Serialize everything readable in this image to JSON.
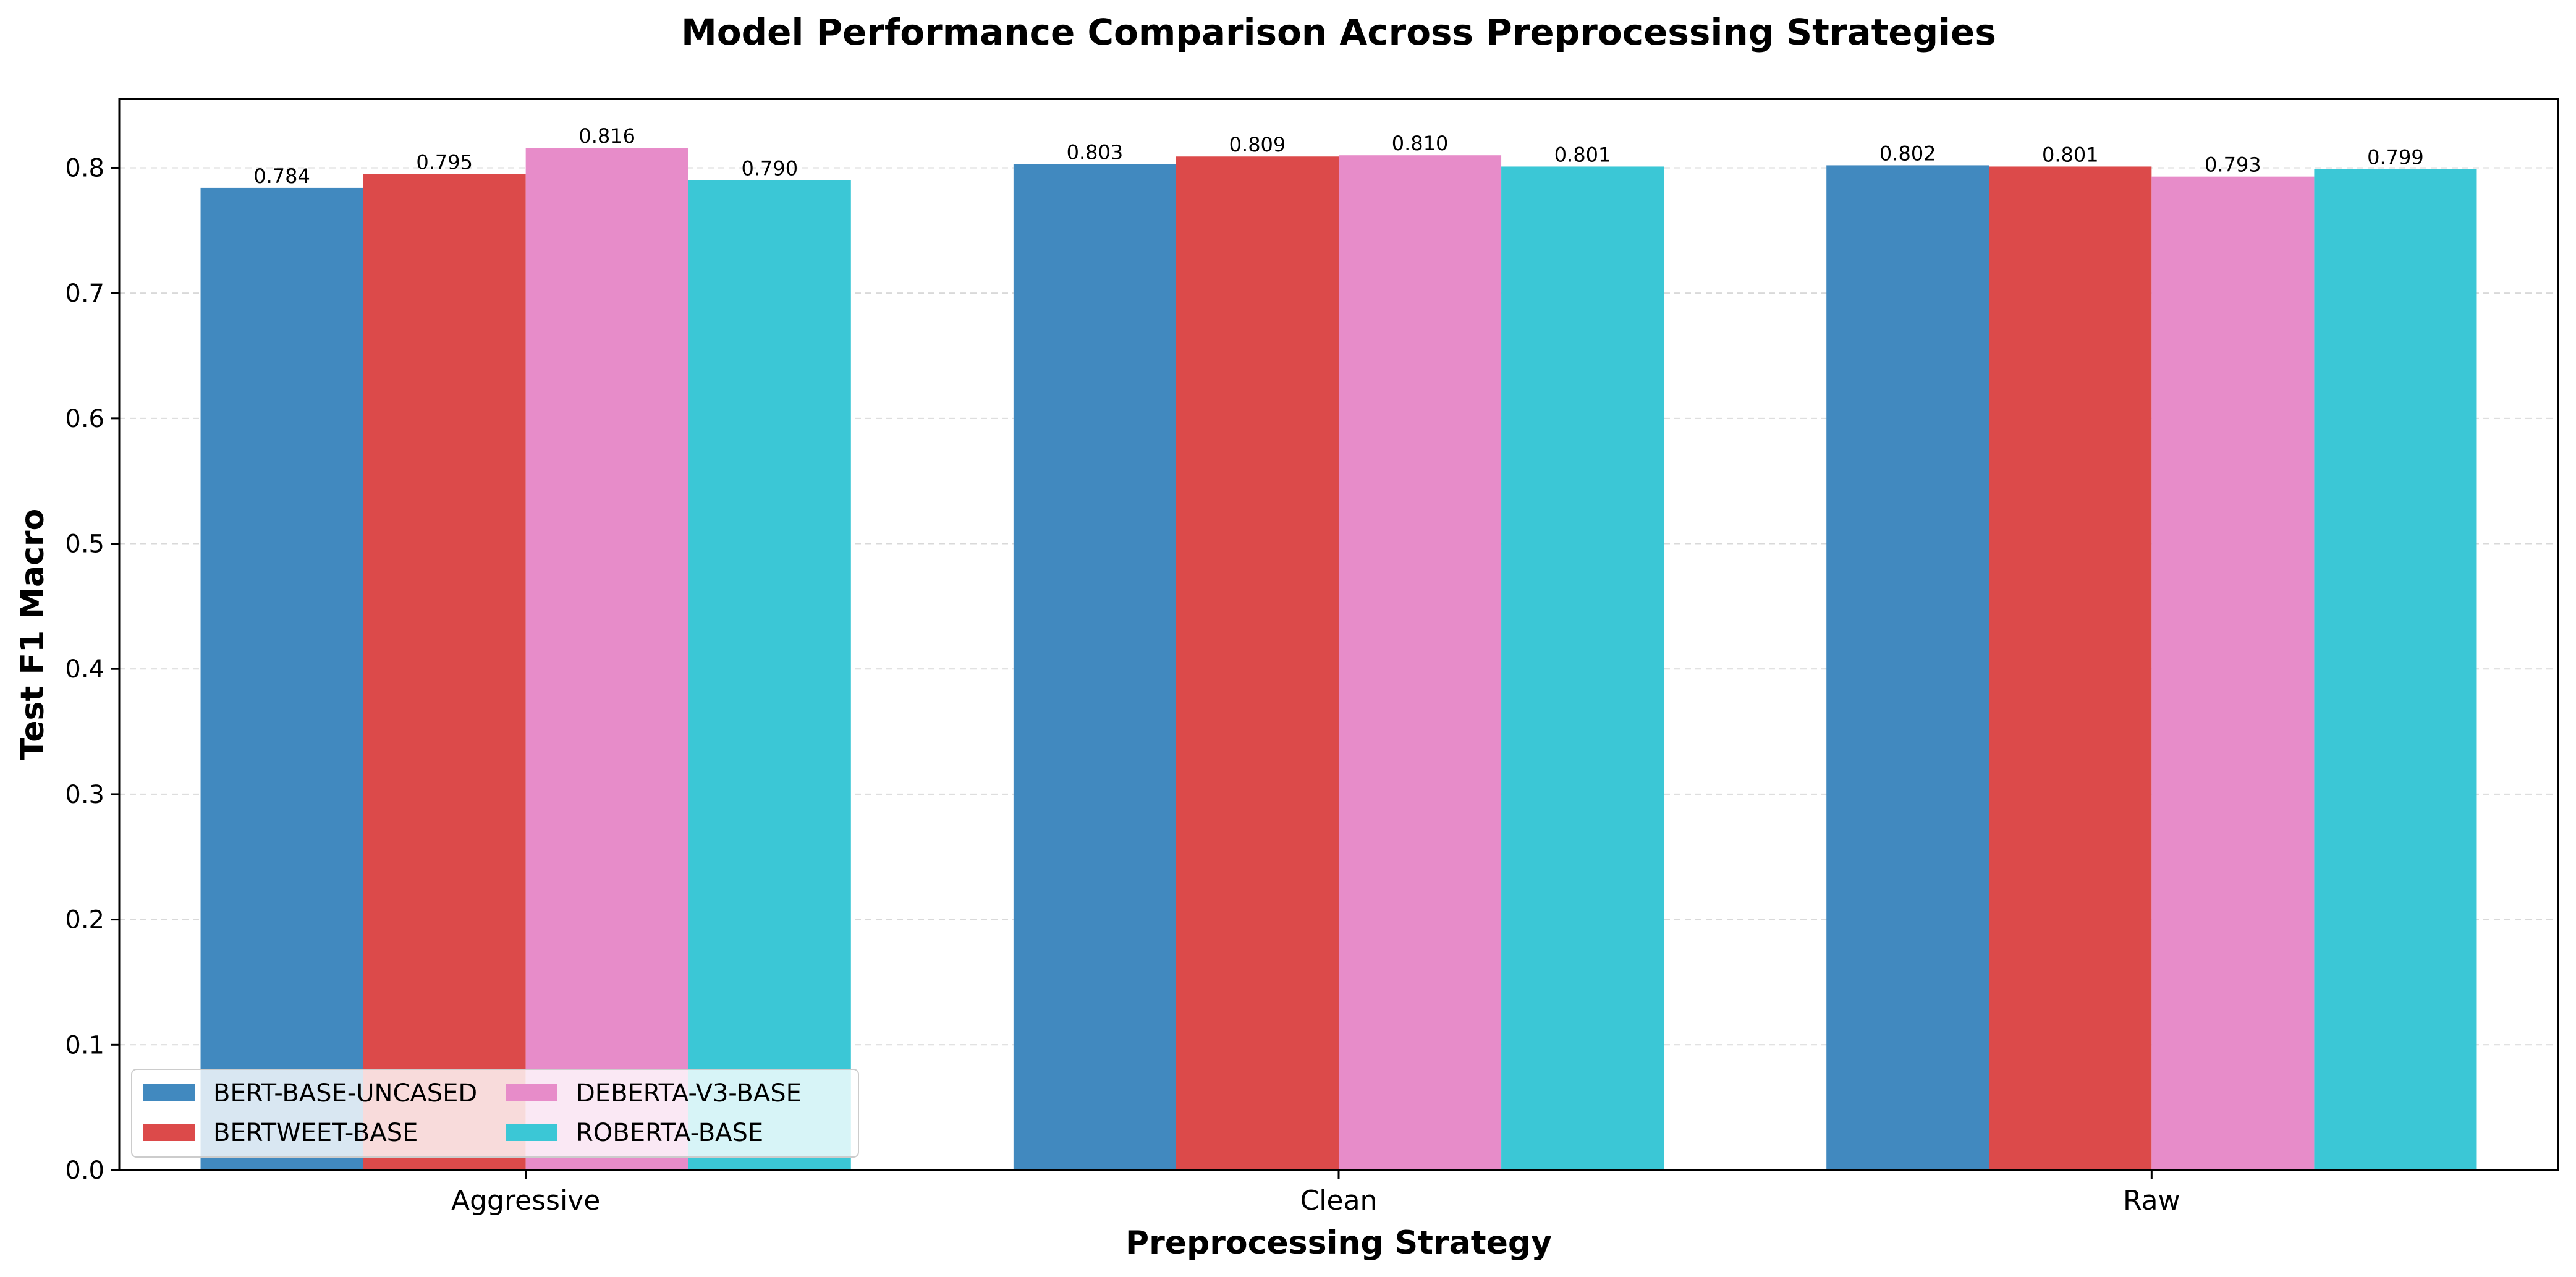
{
  "chart_data": {
    "type": "bar",
    "title": "Model Performance Comparison Across Preprocessing Strategies",
    "xlabel": "Preprocessing Strategy",
    "ylabel": "Test F1 Macro",
    "categories": [
      "Aggressive",
      "Clean",
      "Raw"
    ],
    "ylim": [
      0,
      0.855
    ],
    "yticks": [
      0.0,
      0.1,
      0.2,
      0.3,
      0.4,
      0.5,
      0.6,
      0.7,
      0.8
    ],
    "ytick_labels": [
      "0.0",
      "0.1",
      "0.2",
      "0.3",
      "0.4",
      "0.5",
      "0.6",
      "0.7",
      "0.8"
    ],
    "grid": "y dashed",
    "legend_position": "lower-left",
    "series": [
      {
        "name": "BERT-BASE-UNCASED",
        "color": "#4189bf",
        "values": [
          0.784,
          0.803,
          0.802
        ],
        "labels": [
          "0.784",
          "0.803",
          "0.802"
        ]
      },
      {
        "name": "BERTWEET-BASE",
        "color": "#dc4a4a",
        "values": [
          0.795,
          0.809,
          0.801
        ],
        "labels": [
          "0.795",
          "0.809",
          "0.801"
        ]
      },
      {
        "name": "DEBERTA-V3-BASE",
        "color": "#e78cc9",
        "values": [
          0.816,
          0.81,
          0.793
        ],
        "labels": [
          "0.816",
          "0.810",
          "0.793"
        ]
      },
      {
        "name": "ROBERTA-BASE",
        "color": "#3bc7d6",
        "values": [
          0.79,
          0.801,
          0.799
        ],
        "labels": [
          "0.790",
          "0.801",
          "0.799"
        ]
      }
    ]
  }
}
